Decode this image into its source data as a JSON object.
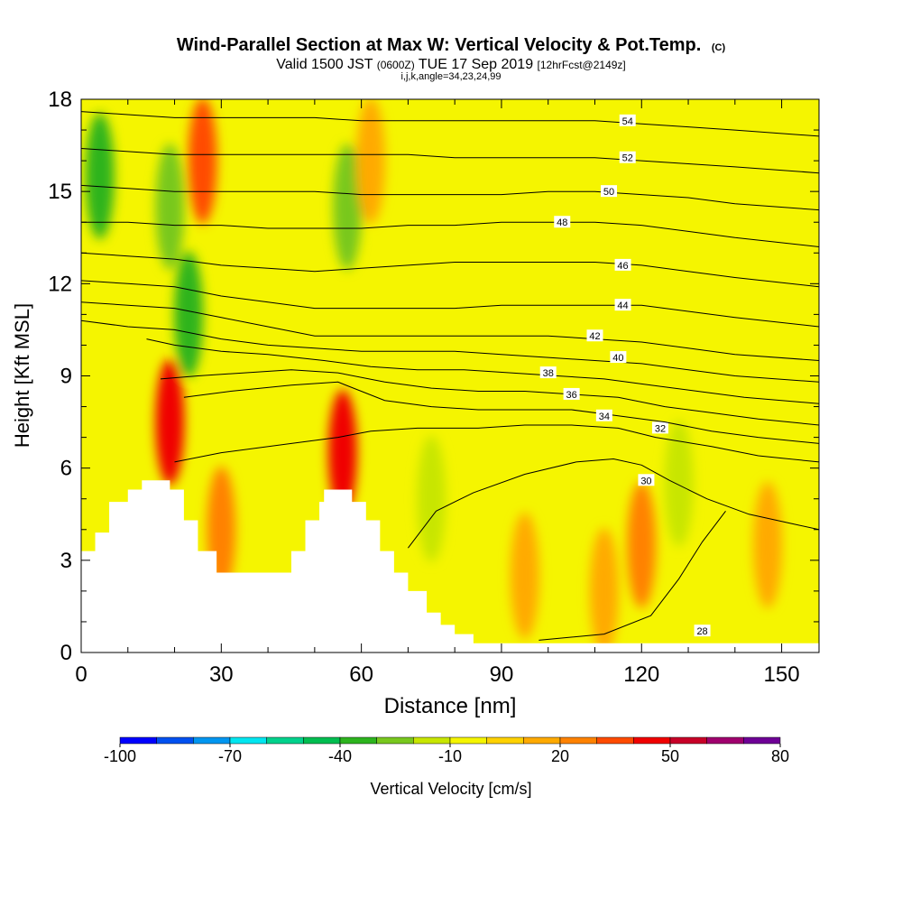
{
  "chart_data": {
    "type": "heatmap",
    "title": "Wind-Parallel Section at Max W: Vertical Velocity & Pot.Temp.",
    "title_mark": "(C)",
    "subtitle": {
      "part1": "Valid 1500 JST ",
      "part2": "(0600Z)",
      "part3": " TUE 17 Sep 2019 ",
      "part4": "[12hrFcst@2149z]"
    },
    "subtitle2": "i,j,k,angle=34,23,24,99",
    "xlabel": "Distance [nm]",
    "ylabel": "Height [Kft MSL]",
    "xlim": [
      0,
      158
    ],
    "ylim": [
      0,
      18
    ],
    "xticks": [
      0,
      30,
      60,
      90,
      120,
      150
    ],
    "yticks": [
      0,
      3,
      6,
      9,
      12,
      15,
      18
    ],
    "background_value_cms": -5,
    "colorbar": {
      "label": "Vertical Velocity [cm/s]",
      "min": -100,
      "max": 80,
      "tick_labels": [
        "-100",
        "-70",
        "-40",
        "-10",
        "20",
        "50",
        "80"
      ],
      "colors": [
        "#0000ff",
        "#0050f0",
        "#0096f0",
        "#00e6f0",
        "#00d28c",
        "#00be50",
        "#2db41e",
        "#78c81e",
        "#c8e600",
        "#f5f500",
        "#ffd200",
        "#ffaa00",
        "#ff8200",
        "#ff4b00",
        "#f00000",
        "#c80028",
        "#a0006e",
        "#6e0096"
      ]
    },
    "velocity_features": [
      {
        "x": 4,
        "y": 15.5,
        "value": -35
      },
      {
        "x": 19,
        "y": 14.5,
        "value": -30
      },
      {
        "x": 23,
        "y": 11,
        "value": -35
      },
      {
        "x": 26,
        "y": 16,
        "value": 30
      },
      {
        "x": 19,
        "y": 7.5,
        "value": 45
      },
      {
        "x": 57,
        "y": 14.5,
        "value": -25
      },
      {
        "x": 62,
        "y": 16,
        "value": 15
      },
      {
        "x": 56,
        "y": 6.5,
        "value": 40
      },
      {
        "x": 75,
        "y": 5,
        "value": -15
      },
      {
        "x": 120,
        "y": 3.5,
        "value": 25
      },
      {
        "x": 128,
        "y": 5.5,
        "value": -15
      },
      {
        "x": 147,
        "y": 3.5,
        "value": 15
      },
      {
        "x": 112,
        "y": 2,
        "value": 15
      },
      {
        "x": 95,
        "y": 2.5,
        "value": 12
      },
      {
        "x": 30,
        "y": 4,
        "value": 20
      }
    ],
    "terrain": [
      [
        0,
        3.3
      ],
      [
        3,
        3.3
      ],
      [
        3,
        3.9
      ],
      [
        6,
        3.9
      ],
      [
        6,
        4.9
      ],
      [
        10,
        4.9
      ],
      [
        10,
        5.3
      ],
      [
        13,
        5.3
      ],
      [
        13,
        5.6
      ],
      [
        19,
        5.6
      ],
      [
        19,
        5.3
      ],
      [
        22,
        5.3
      ],
      [
        22,
        4.3
      ],
      [
        25,
        4.3
      ],
      [
        25,
        3.3
      ],
      [
        29,
        3.3
      ],
      [
        29,
        2.6
      ],
      [
        45,
        2.6
      ],
      [
        45,
        3.3
      ],
      [
        48,
        3.3
      ],
      [
        48,
        4.3
      ],
      [
        51,
        4.3
      ],
      [
        51,
        4.9
      ],
      [
        52,
        4.9
      ],
      [
        52,
        5.3
      ],
      [
        58,
        5.3
      ],
      [
        58,
        4.9
      ],
      [
        61,
        4.9
      ],
      [
        61,
        4.3
      ],
      [
        64,
        4.3
      ],
      [
        64,
        3.3
      ],
      [
        67,
        3.3
      ],
      [
        67,
        2.6
      ],
      [
        70,
        2.6
      ],
      [
        70,
        2.0
      ],
      [
        74,
        2.0
      ],
      [
        74,
        1.3
      ],
      [
        77,
        1.3
      ],
      [
        77,
        0.9
      ],
      [
        80,
        0.9
      ],
      [
        80,
        0.6
      ],
      [
        84,
        0.6
      ],
      [
        84,
        0.3
      ],
      [
        158,
        0.3
      ]
    ],
    "series": [
      {
        "name": "28",
        "x": [
          98,
          112,
          122,
          128,
          133,
          138
        ],
        "y": [
          0.4,
          0.6,
          1.2,
          2.4,
          3.6,
          4.6
        ],
        "label_at": [
          133,
          0.7
        ]
      },
      {
        "name": "30",
        "x": [
          70,
          76,
          84,
          95,
          106,
          114,
          120,
          126,
          134,
          143,
          152,
          158
        ],
        "y": [
          3.4,
          4.6,
          5.2,
          5.8,
          6.2,
          6.3,
          6.1,
          5.6,
          5.0,
          4.5,
          4.2,
          4.0
        ],
        "label_at": [
          121,
          5.6
        ]
      },
      {
        "name": "32",
        "x": [
          20,
          30,
          45,
          55,
          62,
          72,
          85,
          95,
          105,
          115,
          123,
          135,
          145,
          158
        ],
        "y": [
          6.2,
          6.5,
          6.8,
          7.0,
          7.2,
          7.3,
          7.3,
          7.4,
          7.4,
          7.3,
          7.0,
          6.7,
          6.4,
          6.2
        ],
        "label_at": [
          124,
          7.3
        ]
      },
      {
        "name": "34",
        "x": [
          22,
          32,
          45,
          55,
          65,
          75,
          85,
          95,
          105,
          115,
          125,
          135,
          145,
          158
        ],
        "y": [
          8.3,
          8.5,
          8.7,
          8.8,
          8.2,
          8.0,
          7.9,
          7.9,
          7.9,
          7.7,
          7.5,
          7.2,
          7.0,
          6.8
        ],
        "label_at": [
          112,
          7.7
        ]
      },
      {
        "name": "36",
        "x": [
          17,
          25,
          35,
          45,
          55,
          65,
          75,
          85,
          95,
          105,
          115,
          125,
          135,
          145,
          158
        ],
        "y": [
          8.9,
          9.0,
          9.1,
          9.2,
          9.1,
          8.8,
          8.6,
          8.5,
          8.5,
          8.4,
          8.3,
          8.0,
          7.8,
          7.6,
          7.4
        ],
        "label_at": [
          105,
          8.4
        ]
      },
      {
        "name": "38",
        "x": [
          14,
          20,
          30,
          40,
          52,
          62,
          72,
          82,
          92,
          102,
          112,
          122,
          132,
          142,
          158
        ],
        "y": [
          10.2,
          10.0,
          9.8,
          9.7,
          9.5,
          9.3,
          9.2,
          9.2,
          9.1,
          9.0,
          8.9,
          8.7,
          8.5,
          8.3,
          8.1
        ],
        "label_at": [
          100,
          9.1
        ]
      },
      {
        "name": "40",
        "x": [
          0,
          10,
          20,
          30,
          40,
          50,
          60,
          70,
          80,
          90,
          100,
          110,
          120,
          130,
          140,
          158
        ],
        "y": [
          10.8,
          10.6,
          10.5,
          10.2,
          10.0,
          9.9,
          9.8,
          9.8,
          9.8,
          9.7,
          9.6,
          9.5,
          9.4,
          9.2,
          9.0,
          8.8
        ],
        "label_at": [
          115,
          9.6
        ]
      },
      {
        "name": "42",
        "x": [
          0,
          10,
          20,
          30,
          40,
          50,
          60,
          70,
          80,
          90,
          100,
          110,
          120,
          130,
          140,
          158
        ],
        "y": [
          11.4,
          11.3,
          11.2,
          10.9,
          10.6,
          10.3,
          10.3,
          10.3,
          10.3,
          10.3,
          10.3,
          10.2,
          10.1,
          9.9,
          9.7,
          9.5
        ],
        "label_at": [
          110,
          10.3
        ]
      },
      {
        "name": "44",
        "x": [
          0,
          10,
          20,
          30,
          40,
          50,
          60,
          70,
          80,
          90,
          100,
          110,
          120,
          130,
          140,
          158
        ],
        "y": [
          12.1,
          12.0,
          11.9,
          11.6,
          11.4,
          11.2,
          11.2,
          11.2,
          11.2,
          11.3,
          11.3,
          11.3,
          11.3,
          11.1,
          10.9,
          10.6
        ],
        "label_at": [
          116,
          11.3
        ]
      },
      {
        "name": "46",
        "x": [
          0,
          10,
          20,
          30,
          40,
          50,
          60,
          70,
          80,
          90,
          100,
          110,
          120,
          130,
          140,
          158
        ],
        "y": [
          13.0,
          12.9,
          12.8,
          12.6,
          12.5,
          12.4,
          12.5,
          12.6,
          12.7,
          12.7,
          12.7,
          12.7,
          12.6,
          12.4,
          12.2,
          11.9
        ],
        "label_at": [
          116,
          12.6
        ]
      },
      {
        "name": "48",
        "x": [
          0,
          10,
          20,
          30,
          40,
          50,
          60,
          70,
          80,
          90,
          100,
          110,
          120,
          130,
          140,
          158
        ],
        "y": [
          14.0,
          14.0,
          13.9,
          13.9,
          13.8,
          13.8,
          13.8,
          13.9,
          13.9,
          14.0,
          14.0,
          14.0,
          13.9,
          13.7,
          13.5,
          13.2
        ],
        "label_at": [
          103,
          14.0
        ]
      },
      {
        "name": "50",
        "x": [
          0,
          10,
          20,
          30,
          40,
          50,
          60,
          70,
          80,
          90,
          100,
          110,
          120,
          130,
          140,
          158
        ],
        "y": [
          15.2,
          15.1,
          15.0,
          15.0,
          15.0,
          15.0,
          14.9,
          14.9,
          14.9,
          14.9,
          15.0,
          15.0,
          14.9,
          14.8,
          14.6,
          14.4
        ],
        "label_at": [
          113,
          15.0
        ]
      },
      {
        "name": "52",
        "x": [
          0,
          10,
          20,
          30,
          40,
          50,
          60,
          70,
          80,
          90,
          100,
          110,
          120,
          130,
          140,
          158
        ],
        "y": [
          16.4,
          16.3,
          16.2,
          16.2,
          16.2,
          16.2,
          16.2,
          16.2,
          16.1,
          16.1,
          16.1,
          16.1,
          16.0,
          15.9,
          15.8,
          15.6
        ],
        "label_at": [
          117,
          16.1
        ]
      },
      {
        "name": "54",
        "x": [
          0,
          10,
          20,
          30,
          40,
          50,
          60,
          70,
          80,
          90,
          100,
          110,
          120,
          130,
          140,
          158
        ],
        "y": [
          17.6,
          17.5,
          17.4,
          17.4,
          17.4,
          17.4,
          17.3,
          17.3,
          17.3,
          17.3,
          17.3,
          17.3,
          17.2,
          17.1,
          17.0,
          16.8
        ],
        "label_at": [
          117,
          17.3
        ]
      }
    ]
  }
}
